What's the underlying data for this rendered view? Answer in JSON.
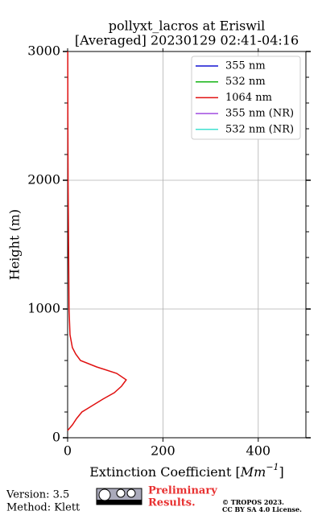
{
  "chart_data": {
    "type": "profile",
    "title": [
      "pollyxt_lacros at Eriswil",
      "[Averaged] 20230129 02:41-04:16"
    ],
    "xlabel_parts": [
      "Extinction Coefficient [",
      "Mm",
      "−1",
      "]"
    ],
    "ylabel": "Height (m)",
    "y": [
      56,
      100,
      150,
      200,
      250,
      300,
      350,
      400,
      450,
      500,
      550,
      600,
      650,
      700,
      800,
      1000,
      1500,
      2000,
      2500,
      3000
    ],
    "series": [
      {
        "name": "355 nm",
        "color": "#1414d2",
        "values": [
          null,
          null,
          null,
          null,
          null,
          null,
          null,
          null,
          null,
          null,
          null,
          null,
          null,
          null,
          null,
          null,
          null,
          null,
          null,
          null
        ]
      },
      {
        "name": "532 nm",
        "color": "#14b414",
        "values": [
          null,
          null,
          null,
          null,
          null,
          null,
          null,
          null,
          null,
          null,
          null,
          null,
          null,
          null,
          null,
          null,
          null,
          null,
          null,
          null
        ]
      },
      {
        "name": "1064 nm",
        "color": "#e01010",
        "values": [
          0,
          10,
          19,
          30,
          52,
          74,
          98,
          113,
          123,
          103,
          61,
          27,
          17,
          10,
          5,
          3,
          2,
          1,
          0.5,
          0.3
        ]
      },
      {
        "name": "355 nm (NR)",
        "color": "#a04ce0",
        "values": [
          null,
          null,
          null,
          null,
          null,
          null,
          null,
          null,
          null,
          null,
          null,
          null,
          null,
          null,
          null,
          null,
          null,
          null,
          null,
          null
        ]
      },
      {
        "name": "532 nm (NR)",
        "color": "#40e0d0",
        "values": [
          null,
          null,
          null,
          null,
          null,
          null,
          null,
          null,
          null,
          null,
          null,
          null,
          null,
          null,
          null,
          null,
          null,
          null,
          null,
          null
        ]
      }
    ],
    "xlim": [
      0,
      500
    ],
    "xticks": [
      0,
      200,
      400
    ],
    "ylim": [
      0,
      3000
    ],
    "yticks": [
      0,
      1000,
      2000,
      3000
    ],
    "yminorticks": [
      200,
      400,
      600,
      800,
      1200,
      1400,
      1600,
      1800,
      2200,
      2400,
      2600,
      2800
    ],
    "grid": true,
    "legend": "upper right"
  },
  "footer": {
    "version": "Version: 3.5",
    "method": "Method: Klett",
    "notice": [
      "Preliminary",
      "Results."
    ],
    "copyright": [
      "© TROPOS 2023.",
      "CC BY SA 4.0 License."
    ]
  }
}
